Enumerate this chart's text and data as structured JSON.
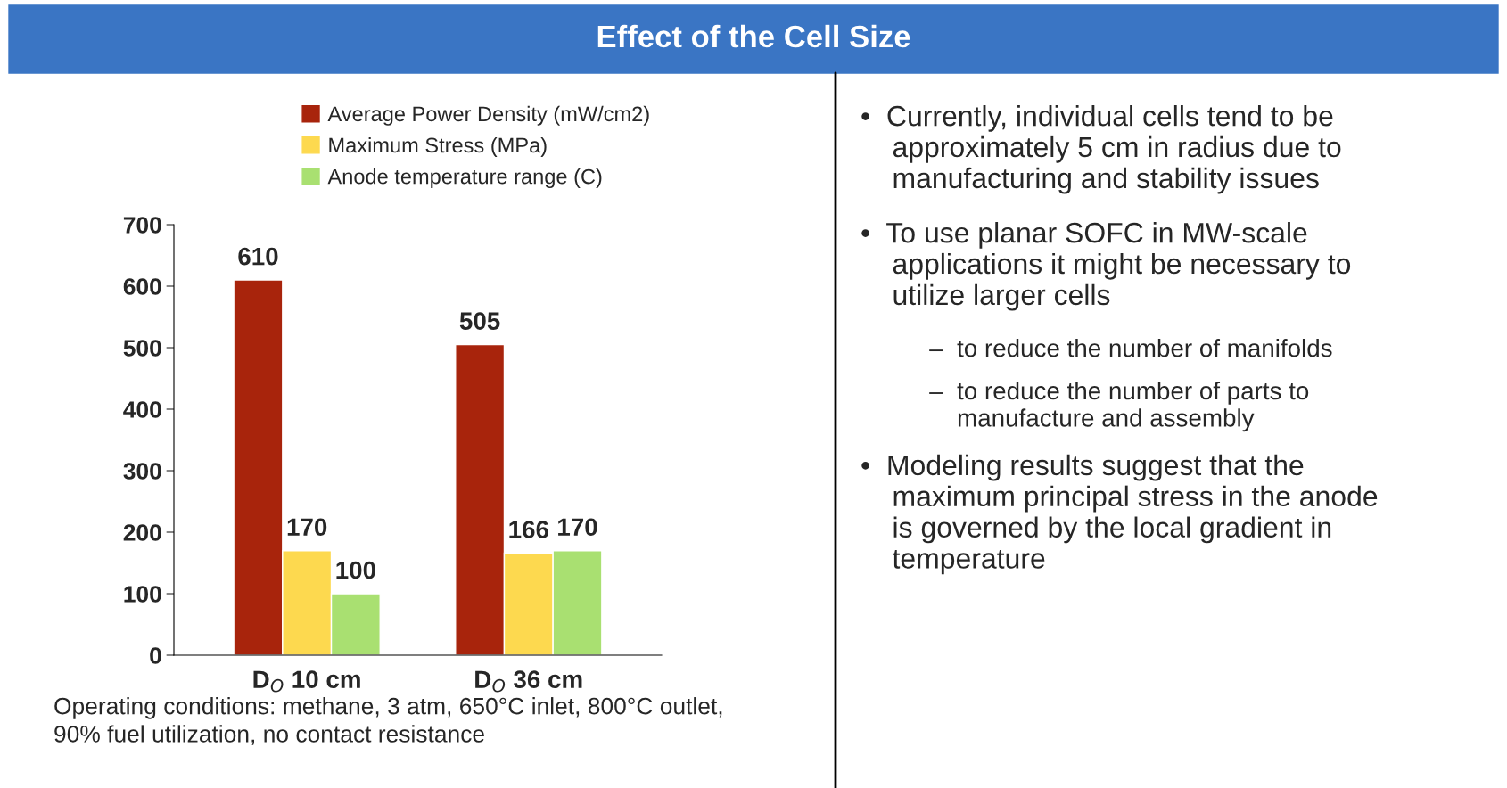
{
  "chart_data": {
    "type": "bar",
    "title": "Effect of the Cell Size",
    "categories": [
      "D$_{O}$ 10 cm",
      "D$_{O}$ 36 cm"
    ],
    "series": [
      {
        "name": "Average Power Density (mW/cm2)",
        "color": "#a8240c",
        "values": [
          610,
          505
        ]
      },
      {
        "name": "Maximum Stress (MPa)",
        "color": "#fdd94f",
        "values": [
          170,
          166
        ]
      },
      {
        "name": "Anode temperature range (C)",
        "color": "#a9e071",
        "values": [
          100,
          170
        ]
      }
    ],
    "ylim": [
      0,
      700
    ],
    "yticks": [
      0,
      100,
      200,
      300,
      400,
      500,
      600,
      700
    ],
    "data_labels": true,
    "grid": false,
    "legend": "top",
    "annotations": [
      "Operating conditions: methane, 3 atm, 650°C inlet, 800°C outlet,\n90% fuel utilization, no contact resistance",
      "•  Currently, individual cells tend to be\n    approximately 5 cm in radius due to\n    manufacturing and stability issues",
      "•  To use planar SOFC in MW-scale\n    applications it might be necessary to\n    utilize larger cells",
      "          –  to reduce the number of manifolds",
      "          –  to reduce the number of parts to\n              manufacture and assembly",
      "•  Modeling results suggest that the\n    maximum principal stress in the anode\n    is governed by the local gradient in\n    temperature"
    ]
  }
}
